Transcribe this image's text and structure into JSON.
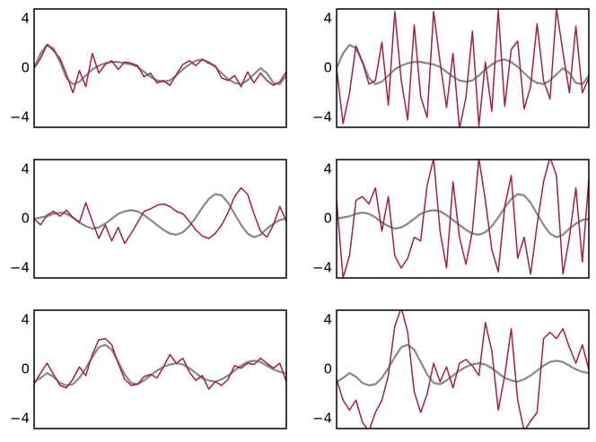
{
  "chart_data": [
    {
      "type": "line",
      "x": [
        0,
        1,
        2,
        3,
        4,
        5,
        6,
        7,
        8,
        9,
        10,
        11,
        12,
        13,
        14,
        15,
        16,
        17,
        18,
        19,
        20,
        21,
        22,
        23,
        24,
        25,
        26,
        27,
        28,
        29,
        30,
        31,
        32,
        33,
        34,
        35,
        36,
        37,
        38,
        39
      ],
      "xlim": [
        0,
        39
      ],
      "ylim": [
        -4.8,
        4.8
      ],
      "yticks": [
        {
          "value": -4,
          "label": "−4"
        },
        0,
        4
      ],
      "series": [
        {
          "color": "#888888",
          "values": [
            0,
            1.2,
            1.9,
            1.6,
            0.5,
            -0.8,
            -1.3,
            -1.1,
            -0.6,
            -0.1,
            0.2,
            0.4,
            0.5,
            0.5,
            0.4,
            0.3,
            0.1,
            -0.3,
            -0.7,
            -1.0,
            -1.1,
            -1.0,
            -0.6,
            -0.1,
            0.3,
            0.6,
            0.7,
            0.5,
            0.1,
            -0.4,
            -0.9,
            -1.2,
            -1.3,
            -1.0,
            -0.5,
            0.0,
            -0.4,
            -1.2,
            -1.3,
            -0.6
          ]
        },
        {
          "color": "#a3213c",
          "values": [
            0,
            0.8,
            1.9,
            1.4,
            0.8,
            -0.5,
            -2.0,
            -0.2,
            -1.5,
            1.2,
            -0.4,
            0.3,
            0.6,
            -0.1,
            0.5,
            0.4,
            0.2,
            -0.7,
            -0.4,
            -1.2,
            -1.0,
            -1.4,
            -0.5,
            0.3,
            0.6,
            0.2,
            0.7,
            0.4,
            0.2,
            -0.8,
            -1.0,
            -0.6,
            -1.5,
            -0.3,
            -1.2,
            -0.4,
            -1.0,
            -1.4,
            -1.1,
            -0.3
          ]
        }
      ]
    },
    {
      "type": "line",
      "x": [
        0,
        1,
        2,
        3,
        4,
        5,
        6,
        7,
        8,
        9,
        10,
        11,
        12,
        13,
        14,
        15,
        16,
        17,
        18,
        19,
        20,
        21,
        22,
        23,
        24,
        25,
        26,
        27,
        28,
        29,
        30,
        31,
        32,
        33,
        34,
        35,
        36,
        37,
        38,
        39
      ],
      "xlim": [
        0,
        39
      ],
      "ylim": [
        -4.8,
        4.8
      ],
      "yticks": [
        {
          "value": -4,
          "label": "−4"
        },
        0,
        4
      ],
      "series": [
        {
          "color": "#888888",
          "values": [
            0,
            1.2,
            1.9,
            1.6,
            0.5,
            -0.8,
            -1.3,
            -1.1,
            -0.6,
            -0.1,
            0.2,
            0.4,
            0.5,
            0.5,
            0.4,
            0.3,
            0.1,
            -0.3,
            -0.7,
            -1.0,
            -1.1,
            -1.0,
            -0.6,
            -0.1,
            0.3,
            0.6,
            0.7,
            0.5,
            0.1,
            -0.4,
            -0.9,
            -1.2,
            -1.3,
            -1.0,
            -0.5,
            0.0,
            -0.4,
            -1.2,
            -1.3,
            -0.6
          ]
        },
        {
          "color": "#a3213c",
          "values": [
            0,
            -4.5,
            -2,
            1.8,
            0.5,
            -1.3,
            -1,
            2.1,
            -3,
            4.6,
            -1,
            -4.2,
            3.5,
            -2.3,
            -4,
            4.6,
            0.5,
            -3.2,
            1.2,
            -4.9,
            -2.4,
            3,
            -4.7,
            0.5,
            -3.5,
            4.7,
            -3.1,
            1.5,
            2.2,
            -3.3,
            -1.5,
            3.6,
            -1,
            -2.5,
            4.8,
            1.3,
            -2,
            3.4,
            -2,
            -0.8
          ]
        }
      ]
    },
    {
      "type": "line",
      "x": [
        0,
        1,
        2,
        3,
        4,
        5,
        6,
        7,
        8,
        9,
        10,
        11,
        12,
        13,
        14,
        15,
        16,
        17,
        18,
        19,
        20,
        21,
        22,
        23,
        24,
        25,
        26,
        27,
        28,
        29,
        30,
        31,
        32,
        33,
        34,
        35,
        36,
        37,
        38,
        39
      ],
      "xlim": [
        0,
        39
      ],
      "ylim": [
        -4.8,
        4.8
      ],
      "yticks": [
        {
          "value": -4,
          "label": "−4"
        },
        0,
        4
      ],
      "series": [
        {
          "color": "#888888",
          "values": [
            0,
            0.1,
            0.2,
            0.4,
            0.5,
            0.4,
            0.1,
            -0.3,
            -0.6,
            -0.8,
            -0.7,
            -0.4,
            0,
            0.4,
            0.6,
            0.7,
            0.6,
            0.3,
            -0.1,
            -0.5,
            -0.9,
            -1.2,
            -1.3,
            -1.1,
            -0.6,
            0.1,
            0.9,
            1.6,
            2.0,
            1.9,
            1.3,
            0.4,
            -0.5,
            -1.2,
            -1.5,
            -1.3,
            -0.8,
            -0.4,
            -0.1,
            0
          ]
        },
        {
          "color": "#a3213c",
          "values": [
            0,
            -0.5,
            0.3,
            0.6,
            0.2,
            0.7,
            0.1,
            -0.3,
            1.3,
            -0.2,
            -1.6,
            -0.5,
            -1.8,
            -0.7,
            -2,
            -1.2,
            -0.3,
            0.6,
            0.8,
            1.1,
            1.2,
            1.0,
            0.6,
            0.4,
            -0.2,
            -0.9,
            -1.4,
            -1.6,
            -1.2,
            -0.5,
            0.5,
            1.8,
            2.5,
            2.0,
            0.4,
            -1.0,
            -1.5,
            -0.5,
            1.0,
            -0.2
          ]
        }
      ]
    },
    {
      "type": "line",
      "x": [
        0,
        1,
        2,
        3,
        4,
        5,
        6,
        7,
        8,
        9,
        10,
        11,
        12,
        13,
        14,
        15,
        16,
        17,
        18,
        19,
        20,
        21,
        22,
        23,
        24,
        25,
        26,
        27,
        28,
        29,
        30,
        31,
        32,
        33,
        34,
        35,
        36,
        37,
        38,
        39
      ],
      "xlim": [
        0,
        39
      ],
      "ylim": [
        -4.8,
        4.8
      ],
      "yticks": [
        {
          "value": -4,
          "label": "−4"
        },
        0,
        4
      ],
      "series": [
        {
          "color": "#888888",
          "values": [
            0,
            0.1,
            0.2,
            0.4,
            0.5,
            0.4,
            0.1,
            -0.3,
            -0.6,
            -0.8,
            -0.7,
            -0.4,
            0,
            0.4,
            0.6,
            0.7,
            0.6,
            0.3,
            -0.1,
            -0.5,
            -0.9,
            -1.2,
            -1.3,
            -1.1,
            -0.6,
            0.1,
            0.9,
            1.6,
            2.0,
            1.9,
            1.3,
            0.4,
            -0.5,
            -1.2,
            -1.5,
            -1.3,
            -0.8,
            -0.4,
            -0.1,
            0
          ]
        },
        {
          "color": "#a3213c",
          "values": [
            1.5,
            -4.8,
            -3,
            1.5,
            1.8,
            1.2,
            2.5,
            -1,
            1.8,
            -3,
            -4,
            -3.2,
            -1.5,
            -1.8,
            2.7,
            4.9,
            -1,
            -4,
            3,
            -1.5,
            -3.7,
            -1,
            4.9,
            1.5,
            -2.5,
            -4.3,
            1,
            3.5,
            -3.2,
            -1.5,
            -4.5,
            -0.5,
            3,
            5,
            3.5,
            -4.5,
            -1.5,
            2.5,
            -3.5,
            3.2
          ]
        }
      ]
    },
    {
      "type": "line",
      "x": [
        0,
        1,
        2,
        3,
        4,
        5,
        6,
        7,
        8,
        9,
        10,
        11,
        12,
        13,
        14,
        15,
        16,
        17,
        18,
        19,
        20,
        21,
        22,
        23,
        24,
        25,
        26,
        27,
        28,
        29,
        30,
        31,
        32,
        33,
        34,
        35,
        36,
        37,
        38,
        39
      ],
      "xlim": [
        0,
        39
      ],
      "ylim": [
        -4.8,
        4.8
      ],
      "yticks": [
        {
          "value": -4,
          "label": "−4"
        },
        0,
        4
      ],
      "series": [
        {
          "color": "#888888",
          "values": [
            -1,
            -0.7,
            -0.3,
            -0.6,
            -1.1,
            -1.3,
            -1.2,
            -0.7,
            0.1,
            1.0,
            1.8,
            2.0,
            1.6,
            0.6,
            -0.4,
            -1.1,
            -1.2,
            -0.9,
            -0.5,
            -0.1,
            0.2,
            0.4,
            0.5,
            0.4,
            0.1,
            -0.3,
            -0.7,
            -0.9,
            -1.0,
            -0.8,
            -0.5,
            -0.1,
            0.3,
            0.6,
            0.7,
            0.6,
            0.3,
            0,
            -0.2,
            -0.3
          ]
        },
        {
          "color": "#a3213c",
          "values": [
            -1.2,
            -0.3,
            0.5,
            -0.4,
            -1.3,
            -1.5,
            -0.8,
            0.2,
            -0.5,
            1.2,
            2.4,
            2.5,
            2.0,
            0.5,
            -0.8,
            -1.3,
            -1.2,
            -0.6,
            -0.4,
            -0.7,
            0.2,
            1.2,
            0.5,
            0.9,
            -0.2,
            -0.9,
            -0.5,
            -1.6,
            -1.0,
            -1.3,
            -0.8,
            0.3,
            0.1,
            0.5,
            0.4,
            0.9,
            0.5,
            0.1,
            0.5,
            -1.0
          ]
        }
      ]
    },
    {
      "type": "line",
      "x": [
        0,
        1,
        2,
        3,
        4,
        5,
        6,
        7,
        8,
        9,
        10,
        11,
        12,
        13,
        14,
        15,
        16,
        17,
        18,
        19,
        20,
        21,
        22,
        23,
        24,
        25,
        26,
        27,
        28,
        29,
        30,
        31,
        32,
        33,
        34,
        35,
        36,
        37,
        38,
        39
      ],
      "xlim": [
        0,
        39
      ],
      "ylim": [
        -4.8,
        4.8
      ],
      "yticks": [
        {
          "value": -4,
          "label": "−4"
        },
        0,
        4
      ],
      "series": [
        {
          "color": "#888888",
          "values": [
            -1,
            -0.7,
            -0.3,
            -0.6,
            -1.1,
            -1.3,
            -1.2,
            -0.7,
            0.1,
            1.0,
            1.8,
            2.0,
            1.6,
            0.6,
            -0.4,
            -1.1,
            -1.2,
            -0.9,
            -0.5,
            -0.1,
            0.2,
            0.4,
            0.5,
            0.4,
            0.1,
            -0.3,
            -0.7,
            -0.9,
            -1.0,
            -0.8,
            -0.5,
            -0.1,
            0.3,
            0.6,
            0.7,
            0.6,
            0.3,
            0,
            -0.2,
            -0.3
          ]
        },
        {
          "color": "#a3213c",
          "values": [
            -0.8,
            -2.5,
            -3.3,
            -2.5,
            -4.3,
            -5,
            -3.5,
            -2.5,
            -0.5,
            3.5,
            5,
            3,
            -1.8,
            -3.5,
            -2,
            0.5,
            -1,
            0.2,
            -1.5,
            0.5,
            0.8,
            0.3,
            -0.5,
            3.8,
            1.5,
            -3.3,
            -0.5,
            3.3,
            -2.5,
            -5,
            -4.2,
            -3.5,
            2.5,
            3.0,
            2.5,
            3.3,
            1.8,
            0.5,
            2,
            0
          ]
        }
      ]
    }
  ]
}
